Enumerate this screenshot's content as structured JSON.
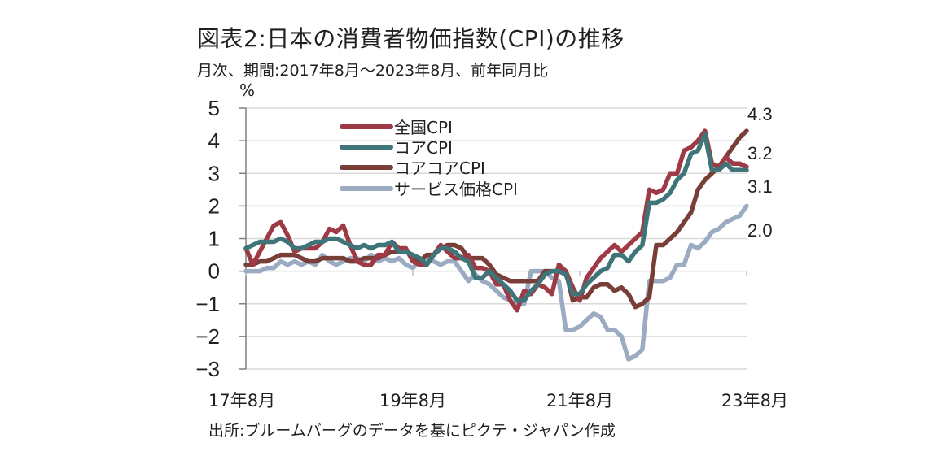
{
  "title": "図表2:日本の消費者物価指数(CPI)の推移",
  "subtitle": "月次、期間:2017年8月～2023年8月、前年同月比",
  "source": "出所:ブルームバーグのデータを基にピクテ・ジャパン作成",
  "chart_data": {
    "type": "line",
    "title": "図表2:日本の消費者物価指数(CPI)の推移",
    "ylabel": "%",
    "xlabel": "",
    "ylim": [
      -3,
      5
    ],
    "yticks": [
      "5",
      "4",
      "3",
      "2",
      "1",
      "0",
      "−1",
      "−2",
      "−3"
    ],
    "ytick_values": [
      5,
      4,
      3,
      2,
      1,
      0,
      -1,
      -2,
      -3
    ],
    "xticks": [
      "17年8月",
      "19年8月",
      "21年8月",
      "23年8月"
    ],
    "xtick_index": [
      0,
      24,
      48,
      72
    ],
    "x_start": "2017-08",
    "x_end": "2023-08",
    "legend": [
      "全国CPI",
      "コアCPI",
      "コアコアCPI",
      "サービス価格CPI"
    ],
    "legend_position": "top-left",
    "end_labels": [
      {
        "series": "コアコアCPI",
        "text": "4.3"
      },
      {
        "series": "全国CPI",
        "text": "3.2"
      },
      {
        "series": "コアCPI",
        "text": "3.1"
      },
      {
        "series": "サービス価格CPI",
        "text": "2.0"
      }
    ],
    "series": [
      {
        "name": "全国CPI",
        "color": "#9e3a45",
        "values": [
          0.7,
          0.2,
          0.6,
          1.0,
          1.4,
          1.5,
          1.1,
          0.6,
          0.7,
          0.7,
          0.7,
          0.9,
          1.3,
          1.2,
          1.4,
          0.8,
          0.3,
          0.2,
          0.2,
          0.5,
          0.5,
          0.9,
          0.7,
          0.7,
          0.3,
          0.2,
          0.2,
          0.5,
          0.8,
          0.6,
          0.4,
          0.4,
          0.5,
          0.1,
          0.1,
          0.0,
          -0.4,
          -0.4,
          -0.9,
          -1.2,
          -0.6,
          -0.7,
          -0.4,
          -0.5,
          -0.7,
          0.2,
          0.0,
          -0.5,
          -0.9,
          -0.2,
          0.1,
          0.4,
          0.6,
          0.8,
          0.6,
          0.8,
          1.0,
          1.2,
          2.5,
          2.4,
          2.5,
          3.0,
          3.0,
          3.7,
          3.8,
          4.0,
          4.3,
          3.3,
          3.2,
          3.5,
          3.3,
          3.3,
          3.2
        ]
      },
      {
        "name": "コアCPI",
        "color": "#3f7479",
        "values": [
          0.7,
          0.8,
          0.9,
          0.9,
          0.9,
          1.0,
          0.9,
          0.7,
          0.7,
          0.8,
          0.9,
          0.9,
          1.0,
          1.0,
          0.9,
          0.8,
          0.7,
          0.8,
          0.7,
          0.8,
          0.8,
          0.9,
          0.6,
          0.6,
          0.5,
          0.4,
          0.2,
          0.5,
          0.7,
          0.7,
          0.6,
          0.4,
          0.3,
          -0.2,
          -0.2,
          0.0,
          -0.2,
          -0.4,
          -0.6,
          -0.9,
          -0.9,
          -0.6,
          -0.4,
          -0.1,
          0.0,
          0.0,
          -0.1,
          -0.7,
          -0.7,
          -0.4,
          -0.2,
          0.0,
          0.1,
          0.5,
          0.5,
          0.3,
          0.6,
          0.8,
          2.1,
          2.1,
          2.2,
          2.4,
          2.8,
          3.0,
          3.6,
          3.7,
          4.2,
          3.1,
          3.1,
          3.3,
          3.1,
          3.1,
          3.1
        ]
      },
      {
        "name": "コアコアCPI",
        "color": "#7a3e38",
        "values": [
          0.2,
          0.2,
          0.3,
          0.3,
          0.4,
          0.5,
          0.5,
          0.5,
          0.4,
          0.3,
          0.3,
          0.4,
          0.4,
          0.4,
          0.4,
          0.3,
          0.3,
          0.4,
          0.4,
          0.4,
          0.5,
          0.6,
          0.6,
          0.6,
          0.5,
          0.3,
          0.5,
          0.5,
          0.7,
          0.8,
          0.8,
          0.7,
          0.4,
          0.4,
          0.4,
          0.2,
          -0.1,
          -0.2,
          -0.3,
          -0.3,
          -0.3,
          -0.3,
          -0.3,
          0.0,
          0.0,
          0.0,
          0.0,
          -0.9,
          -0.8,
          -0.8,
          -0.5,
          -0.4,
          -0.4,
          -0.6,
          -0.5,
          -0.7,
          -1.1,
          -1.0,
          -0.8,
          0.8,
          0.8,
          1.0,
          1.2,
          1.5,
          1.8,
          2.5,
          2.8,
          3.0,
          3.2,
          3.5,
          3.8,
          4.1,
          4.3
        ]
      },
      {
        "name": "サービス価格CPI",
        "color": "#9aabc2",
        "values": [
          0.0,
          0.0,
          0.0,
          0.1,
          0.1,
          0.3,
          0.2,
          0.3,
          0.2,
          0.3,
          0.2,
          0.5,
          0.3,
          0.2,
          0.3,
          0.4,
          0.4,
          0.3,
          0.5,
          0.3,
          0.4,
          0.3,
          0.4,
          0.2,
          0.1,
          0.3,
          0.4,
          0.3,
          0.2,
          0.3,
          0.3,
          0.0,
          -0.3,
          -0.1,
          -0.3,
          -0.4,
          -0.6,
          -0.8,
          -0.9,
          -1.0,
          -1.0,
          0.0,
          0.0,
          0.0,
          -0.2,
          -0.3,
          -1.8,
          -1.8,
          -1.7,
          -1.5,
          -1.3,
          -1.4,
          -1.8,
          -1.8,
          -2.0,
          -2.7,
          -2.6,
          -2.4,
          -0.3,
          -0.3,
          -0.3,
          -0.2,
          0.2,
          0.2,
          0.8,
          0.7,
          0.9,
          1.2,
          1.3,
          1.5,
          1.6,
          1.7,
          2.0
        ]
      }
    ]
  }
}
